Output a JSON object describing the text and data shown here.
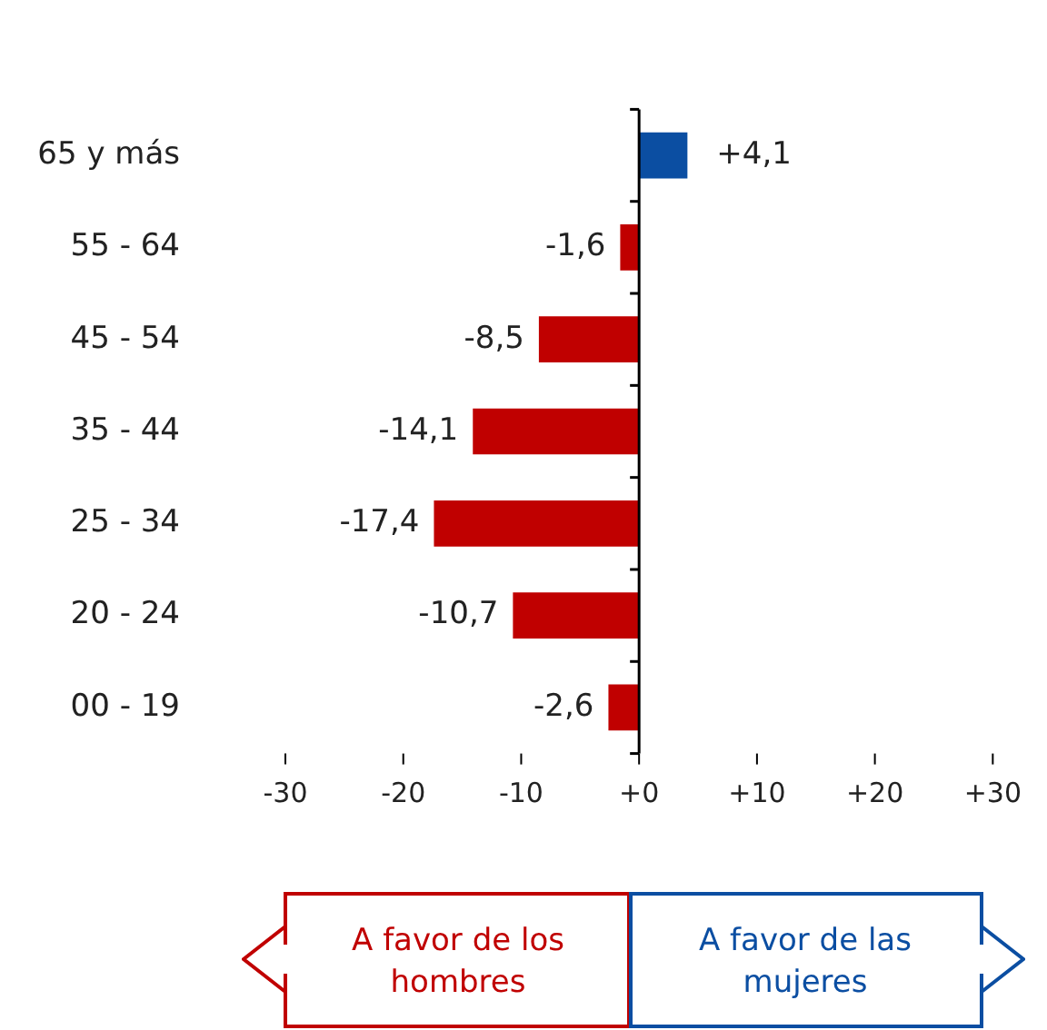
{
  "chart_data": {
    "type": "bar",
    "orientation": "horizontal",
    "categories": [
      "65 y más",
      "55 - 64",
      "45 - 54",
      "35 - 44",
      "25 - 34",
      "20 - 24",
      "00 - 19"
    ],
    "values": [
      4.1,
      -1.6,
      -8.5,
      -14.1,
      -17.4,
      -10.7,
      -2.6
    ],
    "colors": [
      "#0b4ea2",
      "#c00000",
      "#c00000",
      "#c00000",
      "#c00000",
      "#c00000",
      "#c00000"
    ],
    "value_labels": [
      "+4,1",
      "-1,6",
      "-8,5",
      "-14,1",
      "-17,4",
      "-10,7",
      "-2,6"
    ],
    "xlim": [
      -30,
      30
    ],
    "xticks": [
      {
        "value": -30,
        "label": "-30"
      },
      {
        "value": -20,
        "label": "-20"
      },
      {
        "value": -10,
        "label": "-10"
      },
      {
        "value": 0,
        "label": "+0"
      },
      {
        "value": 10,
        "label": "+10"
      },
      {
        "value": 20,
        "label": "+20"
      },
      {
        "value": 30,
        "label": "+30"
      }
    ],
    "legend": false,
    "annotations": [
      "A favor de los hombres",
      "A favor de las mujeres"
    ]
  }
}
